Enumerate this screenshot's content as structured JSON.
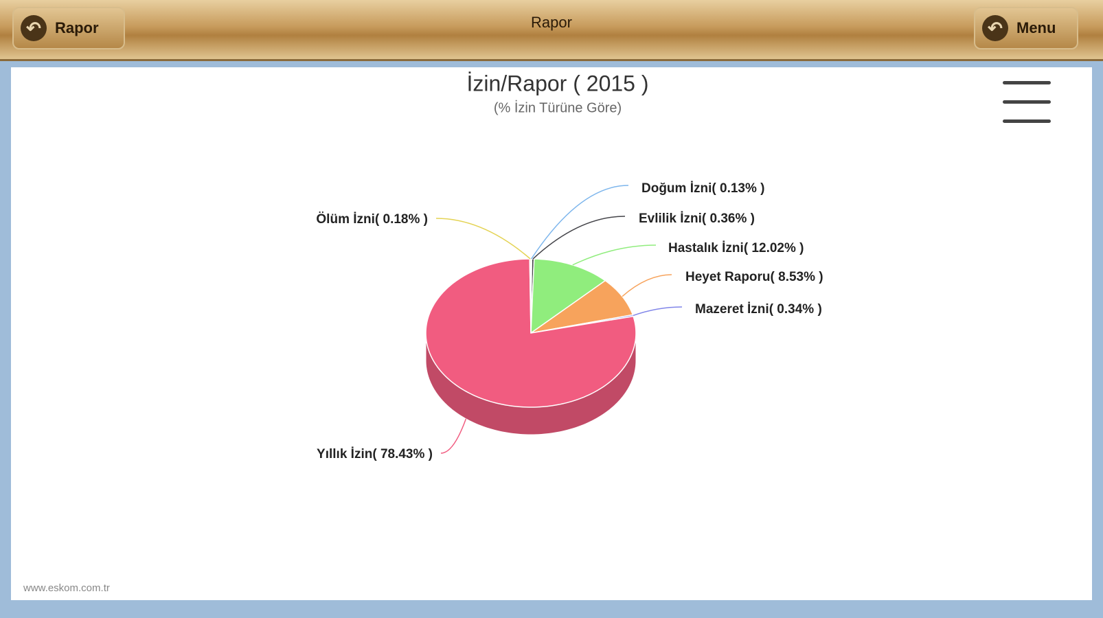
{
  "header": {
    "title": "Rapor",
    "back_button": "Rapor",
    "menu_button": "Menu"
  },
  "chart_data": {
    "type": "pie",
    "title": "İzin/Rapor ( 2015 )",
    "subtitle": "(% İzin Türüne Göre)",
    "categories": [
      "Doğum İzni",
      "Evlilik İzni",
      "Hastalık İzni",
      "Heyet Raporu",
      "Mazeret İzni",
      "Yıllık İzin",
      "Ölüm İzni"
    ],
    "values": [
      0.13,
      0.36,
      12.02,
      8.53,
      0.34,
      78.43,
      0.18
    ],
    "value_labels": [
      "( 0.13% )",
      "( 0.36% )",
      "( 12.02% )",
      "( 8.53% )",
      "( 0.34% )",
      "( 78.43% )",
      "( 0.18% )"
    ],
    "colors": [
      "#7cb5ec",
      "#434348",
      "#90ed7d",
      "#f7a35c",
      "#8085e9",
      "#f15c80",
      "#e4d354"
    ]
  },
  "footer": "www.eskom.com.tr"
}
